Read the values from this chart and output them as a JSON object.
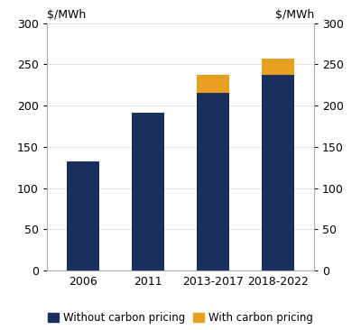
{
  "categories": [
    "2006",
    "2011",
    "2013-2017",
    "2018-2022"
  ],
  "without_carbon": [
    132,
    191,
    215,
    237
  ],
  "with_carbon": [
    0,
    0,
    22,
    20
  ],
  "without_carbon_color": "#1b2f5e",
  "with_carbon_color": "#e8a020",
  "ylim": [
    0,
    300
  ],
  "yticks": [
    0,
    50,
    100,
    150,
    200,
    250,
    300
  ],
  "ylabel_left": "$/MWh",
  "ylabel_right": "$/MWh",
  "legend_without": "Without carbon pricing",
  "legend_with": "With carbon pricing",
  "background_color": "#ffffff",
  "bar_width": 0.5,
  "tick_fontsize": 9,
  "legend_fontsize": 8.5
}
